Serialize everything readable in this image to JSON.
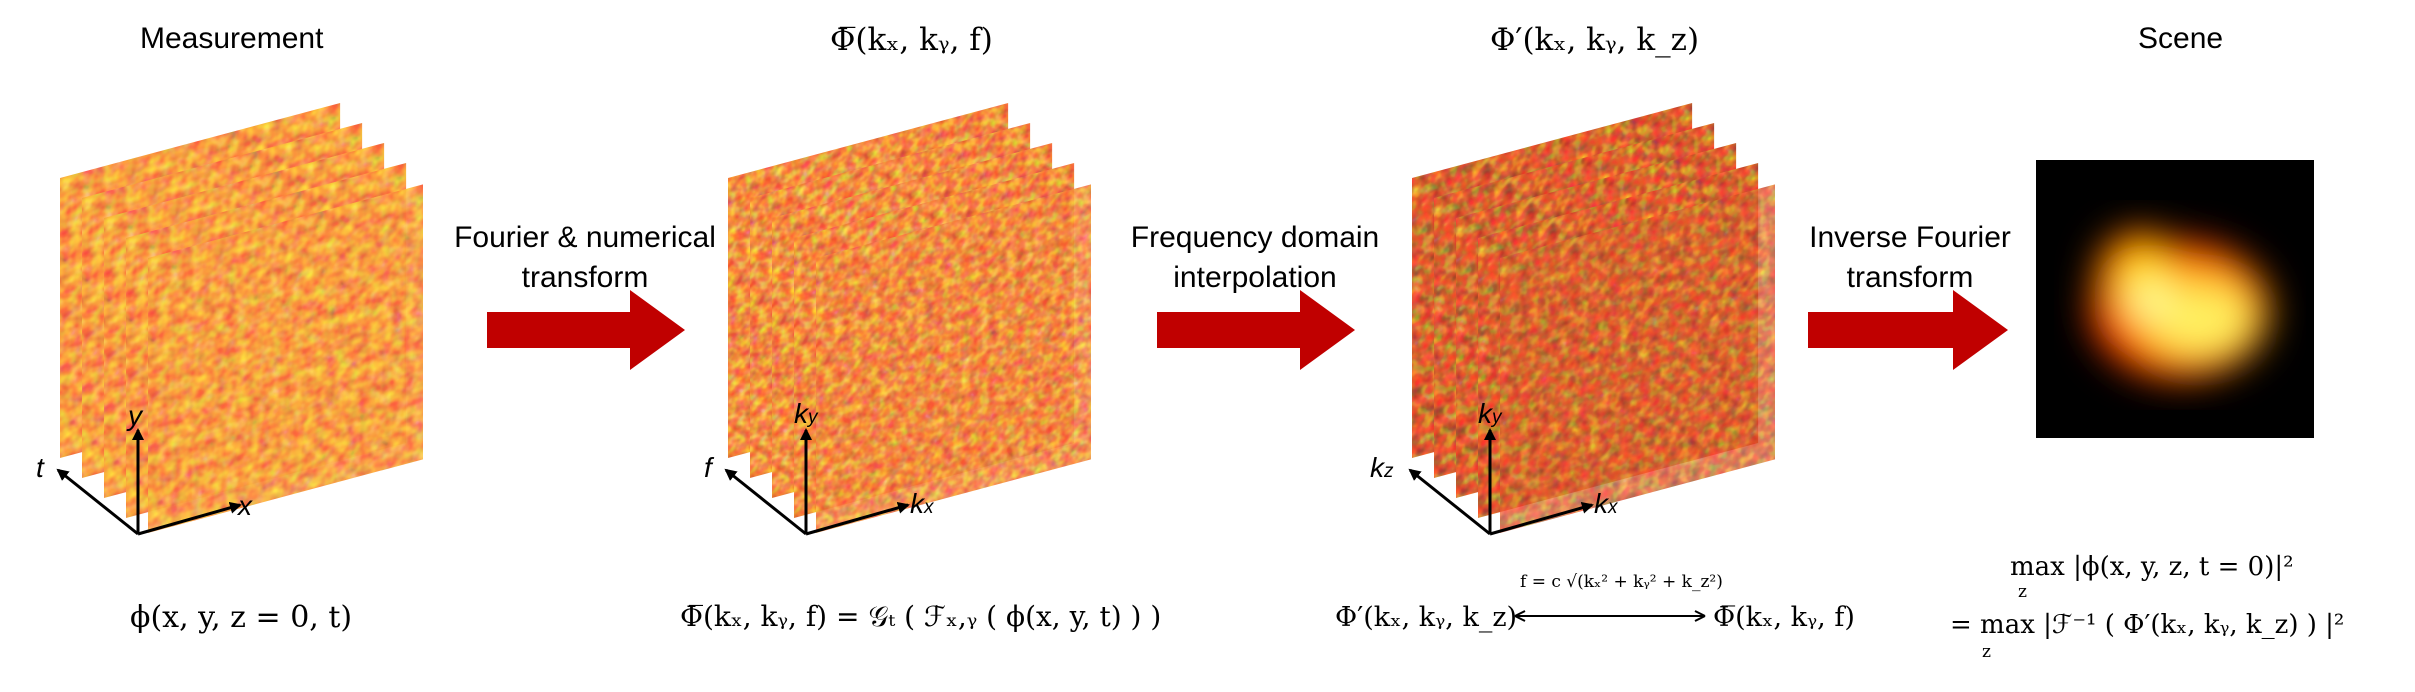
{
  "panels": [
    {
      "title": "Measurement",
      "formula": "ϕ(x, y, z = 0, t)",
      "axes": {
        "depth": "t",
        "vertical": "y",
        "horizontal": "x"
      }
    },
    {
      "title": "Φ̅(kₓ, kᵧ, f)",
      "formula": "Φ̅(kₓ, kᵧ, f) = 𝒢ₜ ( ℱₓ,ᵧ ( ϕ(x, y, t) ) )",
      "axes": {
        "depth": "f",
        "vertical": "k",
        "vertical_sub": "y",
        "horizontal": "k",
        "horizontal_sub": "x"
      }
    },
    {
      "title": "Φ′(kₓ, kᵧ, k_z)",
      "formula_left": "Φ′(kₓ, kᵧ, k_z)",
      "formula_right": "Φ̅(kₓ, kᵧ, f)",
      "formula_arrow_label": "f = c √(kₓ² + kᵧ² + k_z²)",
      "axes": {
        "depth": "k",
        "depth_sub": "z",
        "vertical": "k",
        "vertical_sub": "y",
        "horizontal": "k",
        "horizontal_sub": "x"
      }
    },
    {
      "title": "Scene",
      "formula_line1": "max |ϕ(x, y, z, t = 0)|²",
      "formula_line1_sub": "z",
      "formula_line2": "= max |ℱ⁻¹ ( Φ′(kₓ, kᵧ, k_z) ) |²",
      "formula_line2_sub": "z"
    }
  ],
  "steps": [
    {
      "line1": "Fourier & numerical",
      "line2": "transform"
    },
    {
      "line1": "Frequency domain",
      "line2": "interpolation"
    },
    {
      "line1": "Inverse Fourier",
      "line2": "transform"
    }
  ],
  "colors": {
    "arrow": "#c00000",
    "hot_low": "#1a0000",
    "hot_mid": "#e53000",
    "hot_high": "#ffff40"
  }
}
